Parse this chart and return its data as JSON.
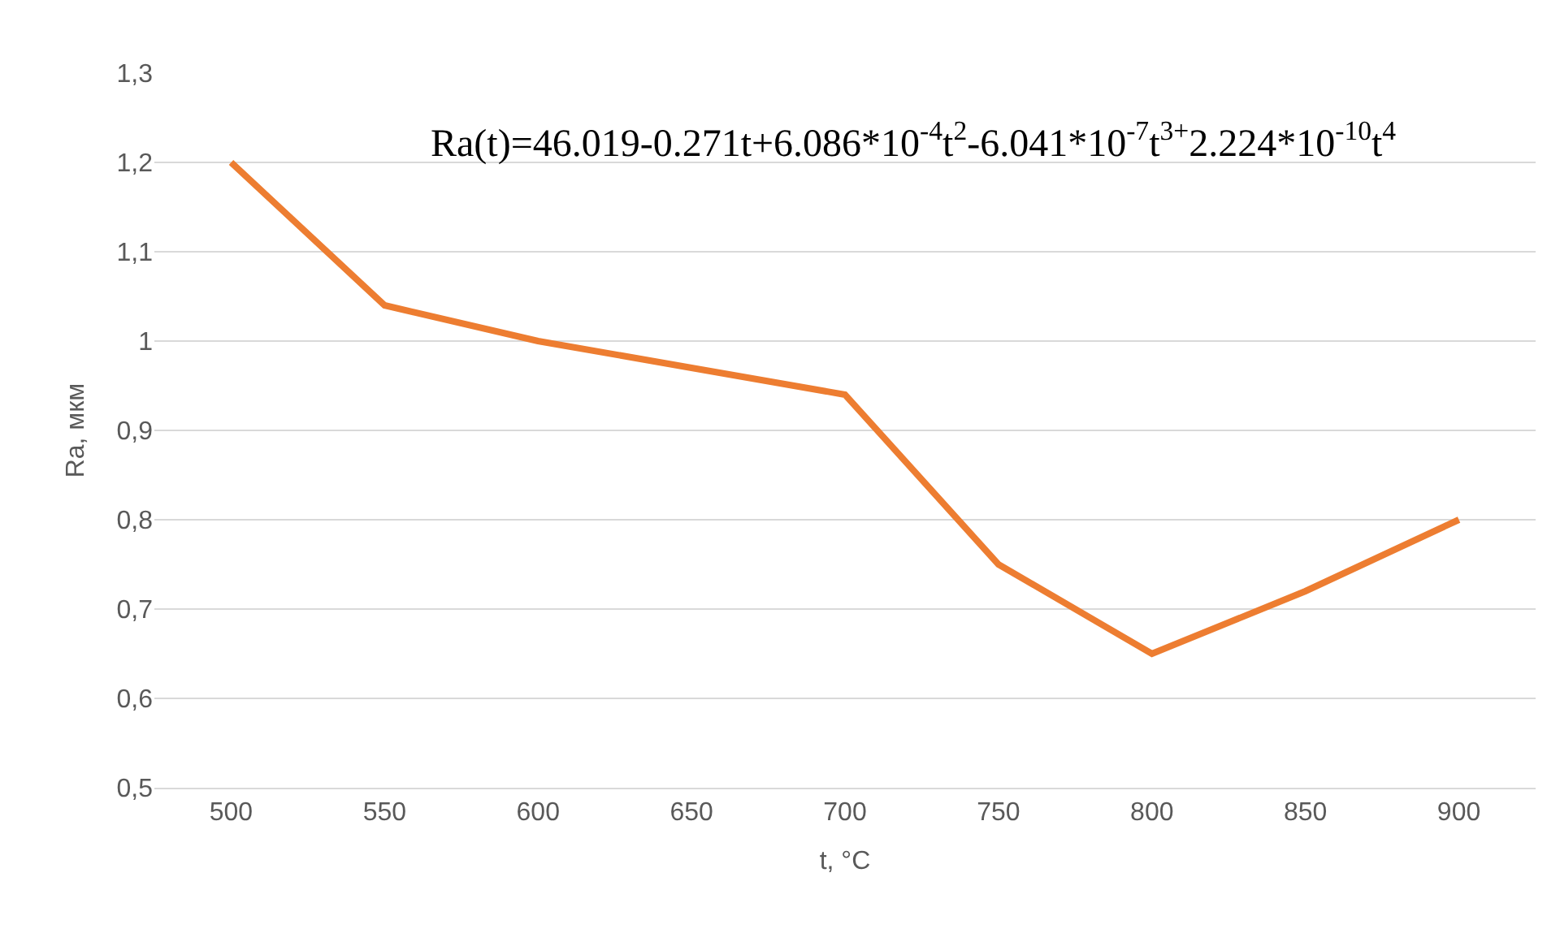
{
  "chart_data": {
    "type": "line",
    "xlabel": "t, °C",
    "ylabel": "Ra, мкм",
    "categories": [
      "500",
      "550",
      "600",
      "650",
      "700",
      "750",
      "800",
      "850",
      "900"
    ],
    "series": [
      {
        "color": "#ed7d31",
        "values": [
          1.2,
          1.04,
          1.0,
          0.97,
          0.94,
          0.75,
          0.65,
          0.72,
          0.8
        ]
      }
    ],
    "ylim": [
      0.5,
      1.3
    ],
    "yticks": [
      {
        "value": 0.5,
        "label": "0,5"
      },
      {
        "value": 0.6,
        "label": "0,6"
      },
      {
        "value": 0.7,
        "label": "0,7"
      },
      {
        "value": 0.8,
        "label": "0,8"
      },
      {
        "value": 0.9,
        "label": "0,9"
      },
      1,
      {
        "value": 1.1,
        "label": "1,1"
      },
      {
        "value": 1.2,
        "label": "1,2"
      },
      {
        "value": 1.3,
        "label": "1,3"
      }
    ],
    "grid": "y",
    "marker": "none",
    "line_style": "solid",
    "annotations": [
      "Ra(t)=46.019-0.271t+6.086*10$^{-4}$t$^{2}$-6.041*10$^{-7}$t$^{3+}$2.224*10$^{-10}$t$^{4}$"
    ]
  }
}
